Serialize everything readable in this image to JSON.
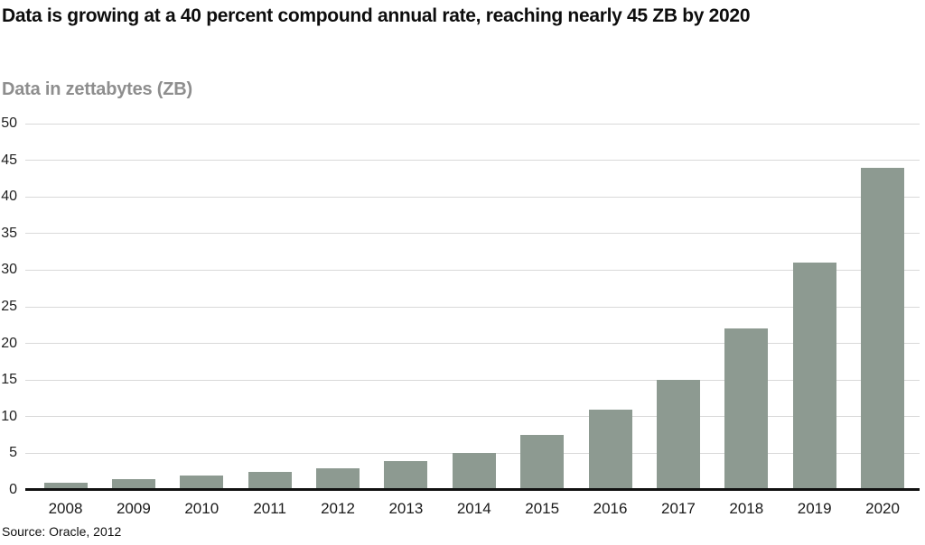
{
  "header": {
    "title": "Data is growing at a 40 percent compound annual rate, reaching nearly 45 ZB by 2020",
    "subtitle": "Data in zettabytes (ZB)"
  },
  "footer": {
    "source": "Source: Oracle, 2012"
  },
  "colors": {
    "bar": "#8d9a91",
    "grid": "#d9d9d9",
    "axis": "#111111",
    "title": "#0d0d0d",
    "subtitle": "#8e8e8e",
    "tick": "#1f1f1f"
  },
  "chart_data": {
    "type": "bar",
    "title": "Data is growing at a 40 percent compound annual rate, reaching nearly 45 ZB by 2020",
    "subtitle": "Data in zettabytes (ZB)",
    "source": "Source: Oracle, 2012",
    "categories": [
      "2008",
      "2009",
      "2010",
      "2011",
      "2012",
      "2013",
      "2014",
      "2015",
      "2016",
      "2017",
      "2018",
      "2019",
      "2020"
    ],
    "values": [
      1,
      1.5,
      2,
      2.5,
      3,
      4,
      5,
      7.5,
      11,
      15,
      22,
      31,
      44
    ],
    "xlabel": "",
    "ylabel": "Data in zettabytes (ZB)",
    "ylim": [
      0,
      50
    ],
    "yticks": [
      0,
      5,
      10,
      15,
      20,
      25,
      30,
      35,
      40,
      45,
      50
    ],
    "grid": true,
    "legend": false,
    "bar_color": "#8d9a91"
  }
}
